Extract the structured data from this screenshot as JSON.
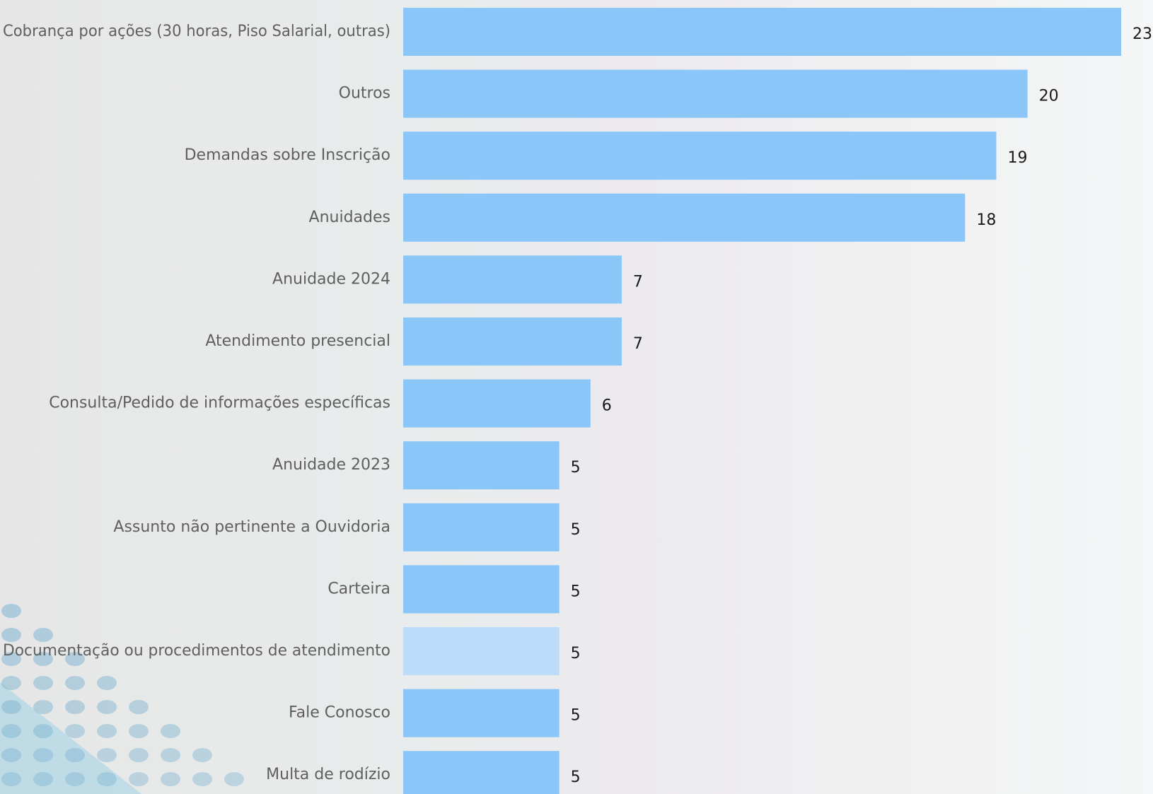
{
  "chart_data": {
    "type": "bar",
    "orientation": "horizontal",
    "title": "",
    "xlabel": "",
    "ylabel": "",
    "xlim": [
      0,
      23
    ],
    "grid": false,
    "legend": "none",
    "categories": [
      "Cobrança por ações (30 horas, Piso Salarial, outras)",
      "Outros",
      "Demandas sobre Inscrição",
      "Anuidades",
      "Anuidade 2024",
      "Atendimento presencial",
      "Consulta/Pedido de informações específicas",
      "Anuidade 2023",
      "Assunto não pertinente a Ouvidoria",
      "Carteira",
      "Documentação ou procedimentos de atendimento",
      "Fale Conosco",
      "Multa de rodízio"
    ],
    "values": [
      23,
      20,
      19,
      18,
      7,
      7,
      6,
      5,
      5,
      5,
      5,
      5,
      5
    ],
    "highlighted_category": "Documentação ou procedimentos de atendimento",
    "colors": {
      "bar": "#8ac6f7",
      "bar_highlighted": "#bcdcf9",
      "label": "#5f5f5f",
      "value": "#1a1a1a",
      "decor_dots": "#7db3d1",
      "decor_triangle": "#9fd2e6"
    }
  }
}
